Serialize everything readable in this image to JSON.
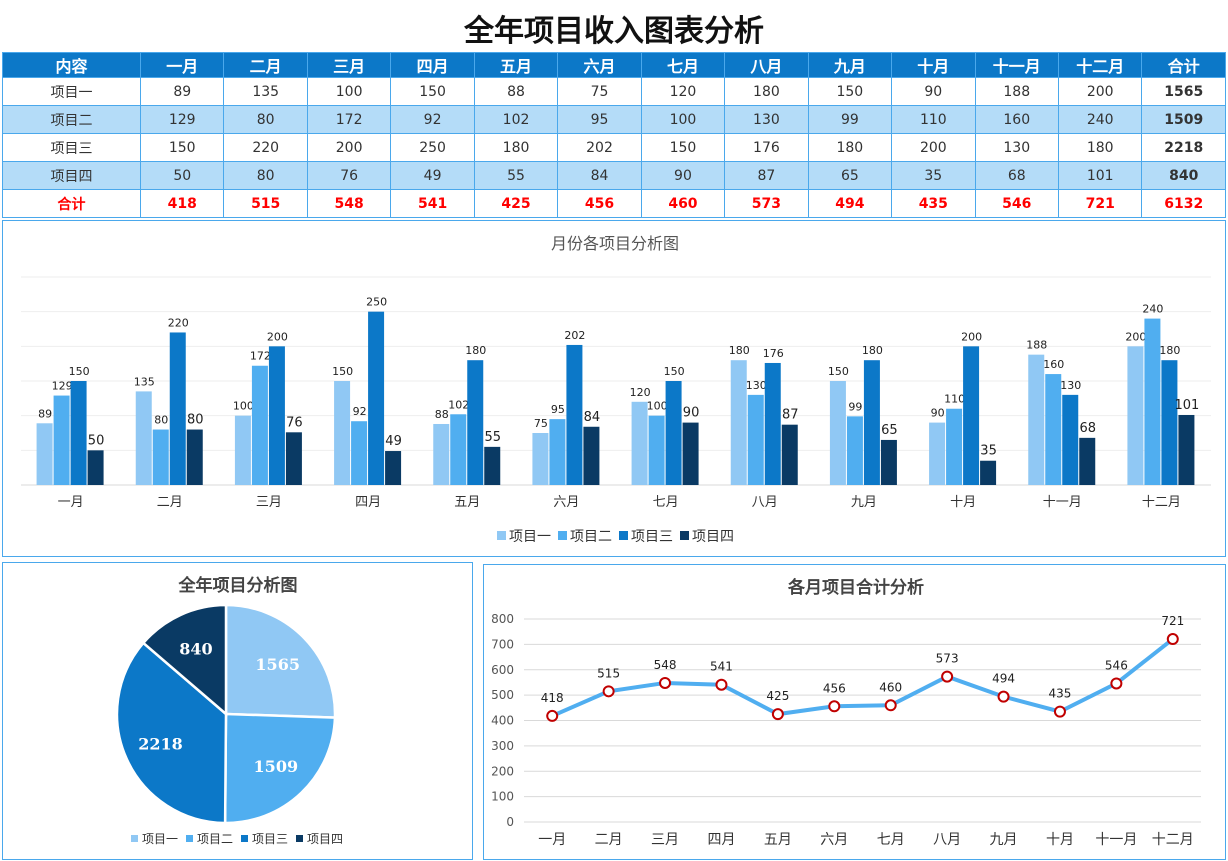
{
  "title": "全年项目收入图表分析",
  "colors": {
    "header": "#0C78C8",
    "row_alt": "#B4DCF8",
    "series": [
      "#90C8F4",
      "#50AEF0",
      "#0C78C8",
      "#0A3A64"
    ],
    "line": "#50AEF0",
    "marker": "#C00000",
    "total_text": "#FF0000"
  },
  "table": {
    "headers": [
      "内容",
      "一月",
      "二月",
      "三月",
      "四月",
      "五月",
      "六月",
      "七月",
      "八月",
      "九月",
      "十月",
      "十一月",
      "十二月",
      "合计"
    ],
    "rows": [
      [
        "项目一",
        "89",
        "135",
        "100",
        "150",
        "88",
        "75",
        "120",
        "180",
        "150",
        "90",
        "188",
        "200",
        "1565"
      ],
      [
        "项目二",
        "129",
        "80",
        "172",
        "92",
        "102",
        "95",
        "100",
        "130",
        "99",
        "110",
        "160",
        "240",
        "1509"
      ],
      [
        "项目三",
        "150",
        "220",
        "200",
        "250",
        "180",
        "202",
        "150",
        "176",
        "180",
        "200",
        "130",
        "180",
        "2218"
      ],
      [
        "项目四",
        "50",
        "80",
        "76",
        "49",
        "55",
        "84",
        "90",
        "87",
        "65",
        "35",
        "68",
        "101",
        "840"
      ],
      [
        "合计",
        "418",
        "515",
        "548",
        "541",
        "425",
        "456",
        "460",
        "573",
        "494",
        "435",
        "546",
        "721",
        "6132"
      ]
    ]
  },
  "chart_data": [
    {
      "type": "bar",
      "title": "月份各项目分析图",
      "categories": [
        "一月",
        "二月",
        "三月",
        "四月",
        "五月",
        "六月",
        "七月",
        "八月",
        "九月",
        "十月",
        "十一月",
        "十二月"
      ],
      "series": [
        {
          "name": "项目一",
          "values": [
            89,
            135,
            100,
            150,
            88,
            75,
            120,
            180,
            150,
            90,
            188,
            200
          ]
        },
        {
          "name": "项目二",
          "values": [
            129,
            80,
            172,
            92,
            102,
            95,
            100,
            130,
            99,
            110,
            160,
            240
          ]
        },
        {
          "name": "项目三",
          "values": [
            150,
            220,
            200,
            250,
            180,
            202,
            150,
            176,
            180,
            200,
            130,
            180
          ]
        },
        {
          "name": "项目四",
          "values": [
            50,
            80,
            76,
            49,
            55,
            84,
            90,
            87,
            65,
            35,
            68,
            101
          ]
        }
      ],
      "ylim": [
        0,
        300
      ],
      "grid": true,
      "legend": "bottom",
      "data_labels": true
    },
    {
      "type": "pie",
      "title": "全年项目分析图",
      "categories": [
        "项目一",
        "项目二",
        "项目三",
        "项目四"
      ],
      "values": [
        1565,
        1509,
        2218,
        840
      ],
      "legend": "bottom",
      "data_labels": true
    },
    {
      "type": "line",
      "title": "各月项目合计分析",
      "categories": [
        "一月",
        "二月",
        "三月",
        "四月",
        "五月",
        "六月",
        "七月",
        "八月",
        "九月",
        "十月",
        "十一月",
        "十二月"
      ],
      "values": [
        418,
        515,
        548,
        541,
        425,
        456,
        460,
        573,
        494,
        435,
        546,
        721
      ],
      "ylim": [
        0,
        800
      ],
      "yticks": [
        0,
        100,
        200,
        300,
        400,
        500,
        600,
        700,
        800
      ],
      "grid": true,
      "data_labels": true
    }
  ]
}
